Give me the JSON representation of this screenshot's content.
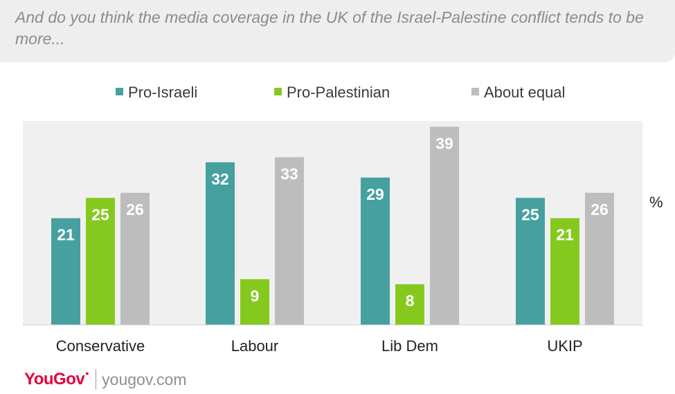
{
  "title": "And do you think the media coverage in the UK of the Israel-Palestine conflict tends to be more...",
  "footer": {
    "brand": "YouGov",
    "website": "yougov.com"
  },
  "colors": {
    "pro_israeli": "#46a0a0",
    "pro_palestinian": "#86c91e",
    "about_equal": "#bdbdbd",
    "plot_background": "#f0f0f0",
    "brand_red": "#e4003b"
  },
  "chart_data": {
    "type": "bar",
    "title": "And do you think the media coverage in the UK of the Israel-Palestine conflict tends to be more...",
    "categories": [
      "Conservative",
      "Labour",
      "Lib Dem",
      "UKIP"
    ],
    "series": [
      {
        "name": "Pro-Israeli",
        "color": "#46a0a0",
        "values": [
          21,
          32,
          29,
          25
        ]
      },
      {
        "name": "Pro-Palestinian",
        "color": "#86c91e",
        "values": [
          25,
          9,
          8,
          21
        ]
      },
      {
        "name": "About equal",
        "color": "#bdbdbd",
        "values": [
          26,
          33,
          39,
          26
        ]
      }
    ],
    "ylabel": "%",
    "ylim": [
      0,
      45
    ],
    "grid": false,
    "legend_position": "top",
    "data_labels": true
  }
}
